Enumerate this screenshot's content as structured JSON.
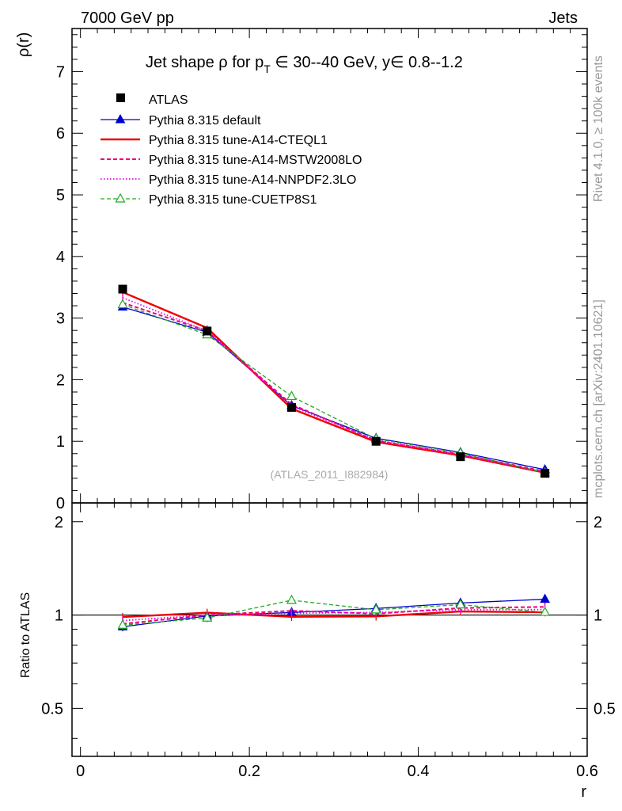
{
  "chart_data": {
    "type": "line",
    "header_left": "7000 GeV pp",
    "header_right": "Jets",
    "title_parts": {
      "a": "Jet shape ρ for p",
      "sub": "T",
      "b": " ∈ 30--40 GeV, y∈ 0.8--1.2"
    },
    "ylabel": "ρ(r)",
    "ratio_ylabel": "Ratio to ATLAS",
    "xlabel": "r",
    "side_label_top": "Rivet 4.1.0, ≥ 100k events",
    "side_label_bottom": "mcplots.cern.ch [arXiv:2401.10621]",
    "analysis_label": "(ATLAS_2011_I882984)",
    "xlim": [
      -0.01,
      0.6
    ],
    "ylim": [
      0,
      7.7
    ],
    "ratio_ylim": [
      0.35,
      2.3
    ],
    "x_ticks": [
      0,
      0.2,
      0.4,
      0.6
    ],
    "x_tick_labels": [
      "0",
      "0.2",
      "0.4",
      "0.6"
    ],
    "y_ticks": [
      0,
      1,
      2,
      3,
      4,
      5,
      6,
      7
    ],
    "y_tick_labels": [
      "0",
      "1",
      "2",
      "3",
      "4",
      "5",
      "6",
      "7"
    ],
    "ratio_ticks": [
      0.5,
      1,
      2
    ],
    "ratio_tick_labels": [
      "0.5",
      "1",
      "2"
    ],
    "x": [
      0.05,
      0.15,
      0.25,
      0.35,
      0.45,
      0.55
    ],
    "atlas": {
      "name": "ATLAS",
      "values": [
        3.47,
        2.79,
        1.55,
        1.0,
        0.75,
        0.48
      ],
      "errors": [
        0.07,
        0.06,
        0.04,
        0.03,
        0.02,
        0.02
      ],
      "color": "#000000"
    },
    "series": [
      {
        "name": "Pythia 8.315 default",
        "values": [
          3.18,
          2.77,
          1.58,
          1.05,
          0.82,
          0.54
        ],
        "ratio_errors": [
          0.03,
          0.03,
          0.03,
          0.04,
          0.04,
          0.04
        ],
        "color": "#0000cc",
        "dash": "",
        "width": 1.3,
        "marker": "triangle"
      },
      {
        "name": "Pythia 8.315 tune-A14-CTEQL1",
        "values": [
          3.42,
          2.84,
          1.53,
          0.99,
          0.77,
          0.49
        ],
        "ratio_errors": [
          0.03,
          0.03,
          0.03,
          0.03,
          0.03,
          0.03
        ],
        "color": "#ee0000",
        "dash": "",
        "width": 2.4,
        "marker": "none"
      },
      {
        "name": "Pythia 8.315 tune-A14-MSTW2008LO",
        "values": [
          3.25,
          2.79,
          1.6,
          1.01,
          0.79,
          0.51
        ],
        "ratio_errors": [
          0.03,
          0.03,
          0.03,
          0.03,
          0.03,
          0.03
        ],
        "color": "#ee0077",
        "dash": "5,3",
        "width": 2.0,
        "marker": "none"
      },
      {
        "name": "Pythia 8.315 tune-A14-NNPDF2.3LO",
        "values": [
          3.33,
          2.79,
          1.57,
          1.02,
          0.78,
          0.5
        ],
        "ratio_errors": [
          0.03,
          0.03,
          0.03,
          0.03,
          0.03,
          0.03
        ],
        "color": "#ee00ee",
        "dash": "1.5,2.5",
        "width": 1.8,
        "marker": "none"
      },
      {
        "name": "Pythia 8.315 tune-CUETP8S1",
        "values": [
          3.22,
          2.73,
          1.73,
          1.04,
          0.81,
          0.49
        ],
        "ratio_errors": [
          0.03,
          0.03,
          0.03,
          0.04,
          0.04,
          0.03
        ],
        "color": "#22aa22",
        "dash": "5,3",
        "width": 1.3,
        "marker": "open-triangle"
      }
    ]
  }
}
